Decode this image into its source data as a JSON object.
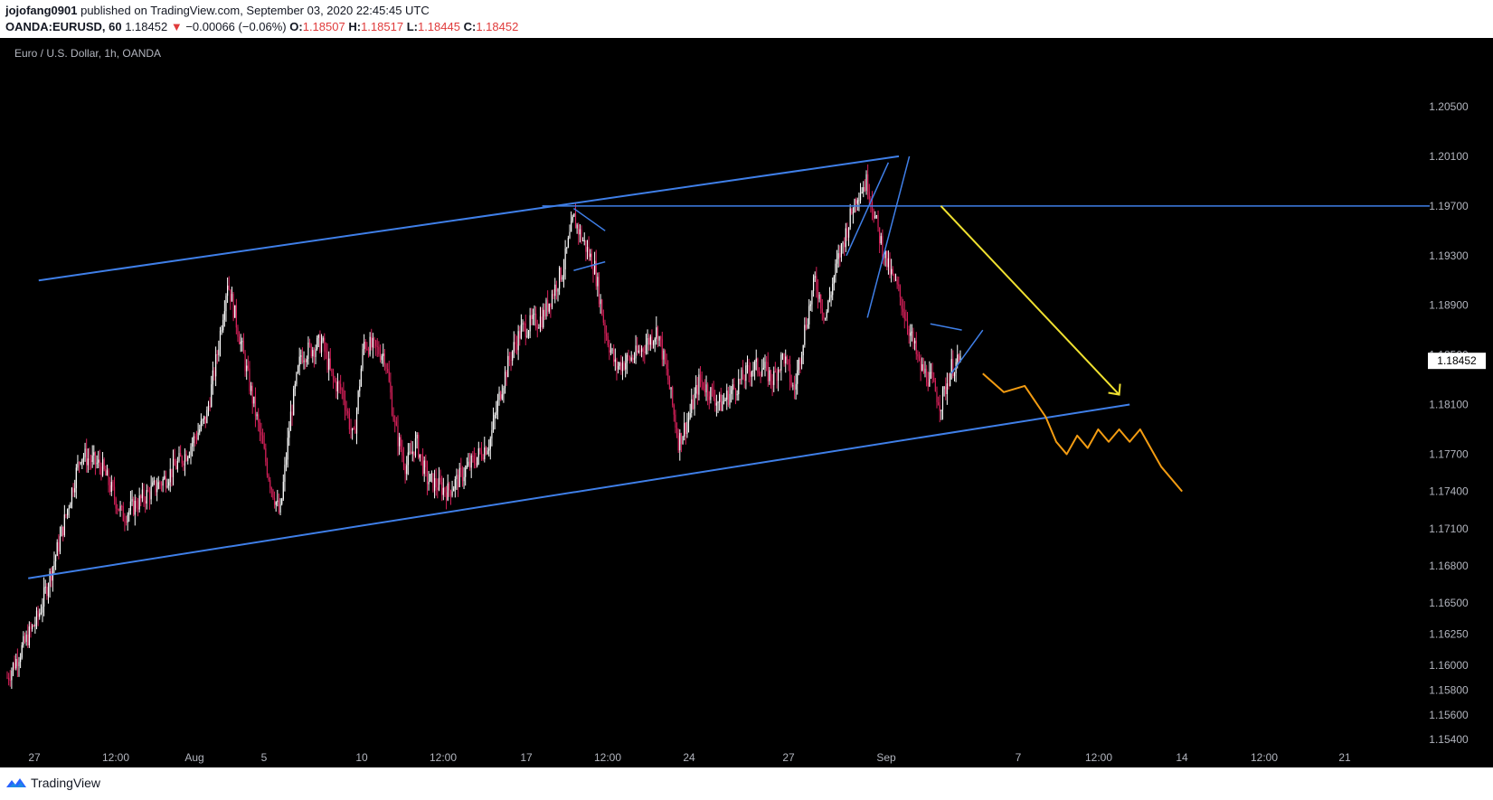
{
  "header": {
    "author": "jojofang0901",
    "published_text": "published on TradingView.com, September 03, 2020 22:45:45 UTC",
    "symbol": "OANDA:EURUSD, 60",
    "last": "1.18452",
    "change": "−0.00066 (−0.06%)",
    "o_label": "O:",
    "o_value": "1.18507",
    "h_label": "H:",
    "h_value": "1.18517",
    "l_label": "L:",
    "l_value": "1.18445",
    "c_label": "C:",
    "c_value": "1.18452"
  },
  "chart": {
    "title": "Euro / U.S. Dollar, 1h, OANDA",
    "price_badge": "1.18452"
  },
  "footer": {
    "brand": "TradingView"
  },
  "colors": {
    "background": "#000000",
    "trendline": "#3f7fe8",
    "arrow": "#f0e130",
    "projection": "#f39c12",
    "candle_up": "#ffffff",
    "candle_down": "#d6205a"
  },
  "chart_data": {
    "type": "candlestick",
    "title": "Euro / U.S. Dollar, 1h, OANDA",
    "y_ticks": [
      "1.20500",
      "1.20100",
      "1.19700",
      "1.19300",
      "1.18900",
      "1.18500",
      "1.18100",
      "1.17700",
      "1.17400",
      "1.17100",
      "1.16800",
      "1.16500",
      "1.16250",
      "1.16000",
      "1.15800",
      "1.15600",
      "1.15400"
    ],
    "x_ticks": [
      "27",
      "12:00",
      "Aug",
      "5",
      "10",
      "12:00",
      "17",
      "12:00",
      "24",
      "27",
      "Sep",
      "7",
      "12:00",
      "14",
      "12:00",
      "21"
    ],
    "last_price": 1.18452,
    "price_path": [
      [
        0,
        1.159
      ],
      [
        3,
        1.164
      ],
      [
        5,
        1.17
      ],
      [
        7,
        1.177
      ],
      [
        9,
        1.176
      ],
      [
        11,
        1.172
      ],
      [
        13,
        1.1735
      ],
      [
        15,
        1.175
      ],
      [
        17,
        1.177
      ],
      [
        19,
        1.18
      ],
      [
        20,
        1.185
      ],
      [
        21,
        1.191
      ],
      [
        22,
        1.187
      ],
      [
        23,
        1.183
      ],
      [
        24,
        1.179
      ],
      [
        25,
        1.175
      ],
      [
        26,
        1.172
      ],
      [
        27,
        1.18
      ],
      [
        28,
        1.185
      ],
      [
        30,
        1.186
      ],
      [
        31,
        1.183
      ],
      [
        32,
        1.182
      ],
      [
        33,
        1.178
      ],
      [
        34,
        1.186
      ],
      [
        36,
        1.185
      ],
      [
        37,
        1.179
      ],
      [
        38,
        1.176
      ],
      [
        39,
        1.178
      ],
      [
        40,
        1.175
      ],
      [
        42,
        1.174
      ],
      [
        44,
        1.176
      ],
      [
        46,
        1.178
      ],
      [
        47,
        1.182
      ],
      [
        48,
        1.185
      ],
      [
        49,
        1.187
      ],
      [
        51,
        1.188
      ],
      [
        52,
        1.19
      ],
      [
        53,
        1.192
      ],
      [
        54,
        1.196
      ],
      [
        55,
        1.194
      ],
      [
        56,
        1.192
      ],
      [
        57,
        1.187
      ],
      [
        58,
        1.184
      ],
      [
        60,
        1.185
      ],
      [
        62,
        1.187
      ],
      [
        63,
        1.183
      ],
      [
        64,
        1.178
      ],
      [
        65,
        1.18
      ],
      [
        66,
        1.183
      ],
      [
        67,
        1.182
      ],
      [
        68,
        1.181
      ],
      [
        70,
        1.183
      ],
      [
        71,
        1.184
      ],
      [
        72,
        1.184
      ],
      [
        73,
        1.183
      ],
      [
        74,
        1.185
      ],
      [
        75,
        1.182
      ],
      [
        76,
        1.187
      ],
      [
        77,
        1.191
      ],
      [
        78,
        1.188
      ],
      [
        79,
        1.192
      ],
      [
        80,
        1.195
      ],
      [
        81,
        1.198
      ],
      [
        82,
        1.199
      ],
      [
        83,
        1.195
      ],
      [
        84,
        1.192
      ],
      [
        85,
        1.19
      ],
      [
        86,
        1.187
      ],
      [
        87,
        1.184
      ],
      [
        88,
        1.183
      ],
      [
        89,
        1.181
      ],
      [
        90,
        1.184
      ],
      [
        91,
        1.1845
      ]
    ],
    "annotations": {
      "channel_upper": [
        [
          3,
          1.191
        ],
        [
          85,
          1.201
        ]
      ],
      "channel_lower": [
        [
          2,
          1.167
        ],
        [
          107,
          1.181
        ]
      ],
      "resistance": 1.197,
      "target_arrow": [
        [
          89,
          1.197
        ],
        [
          106,
          1.1818
        ]
      ],
      "projection": [
        [
          93,
          1.1835
        ],
        [
          95,
          1.182
        ],
        [
          97,
          1.1825
        ],
        [
          99,
          1.18
        ],
        [
          100,
          1.178
        ],
        [
          101,
          1.177
        ],
        [
          102,
          1.1785
        ],
        [
          103,
          1.1775
        ],
        [
          104,
          1.179
        ],
        [
          105,
          1.178
        ],
        [
          106,
          1.179
        ],
        [
          107,
          1.178
        ],
        [
          108,
          1.179
        ],
        [
          110,
          1.176
        ],
        [
          112,
          1.174
        ]
      ]
    }
  }
}
